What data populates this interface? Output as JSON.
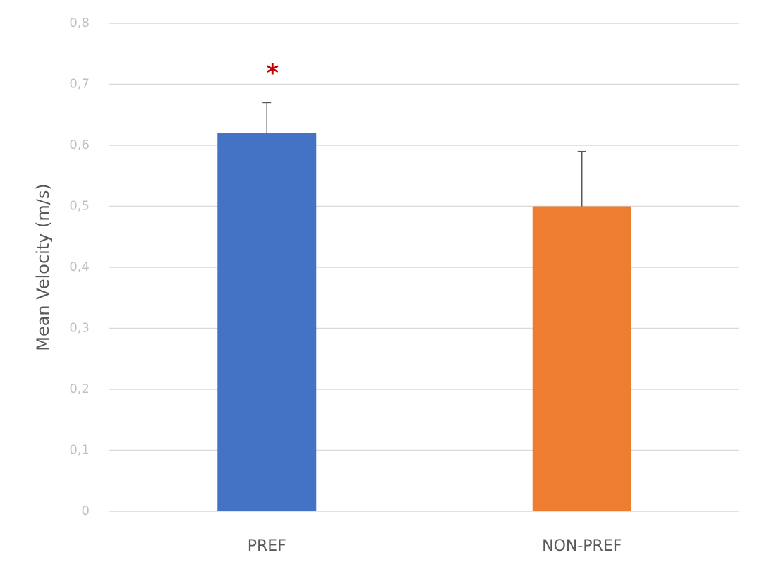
{
  "chart_data": {
    "type": "bar",
    "y_label": "Mean Velocity (m/s)",
    "categories": [
      "PREF",
      "NON-PREF"
    ],
    "values": [
      0.62,
      0.5
    ],
    "errors": [
      0.05,
      0.09
    ],
    "colors": [
      "#4472c4",
      "#ed7d31"
    ],
    "error_color": "#595959",
    "ylim": [
      0,
      0.8
    ],
    "yticks": [
      0,
      {
        "value": 0.1,
        "label": "0,1"
      },
      {
        "value": 0.2,
        "label": "0,2"
      },
      {
        "value": 0.3,
        "label": "0,3"
      },
      {
        "value": 0.4,
        "label": "0,4"
      },
      {
        "value": 0.5,
        "label": "0,5"
      },
      {
        "value": 0.6,
        "label": "0,6"
      },
      {
        "value": 0.7,
        "label": "0,7"
      },
      {
        "value": 0.8,
        "label": "0,8"
      }
    ],
    "grid": true,
    "annotations": [
      {
        "text": "*",
        "category": "PREF",
        "color": "#c00000"
      }
    ]
  }
}
